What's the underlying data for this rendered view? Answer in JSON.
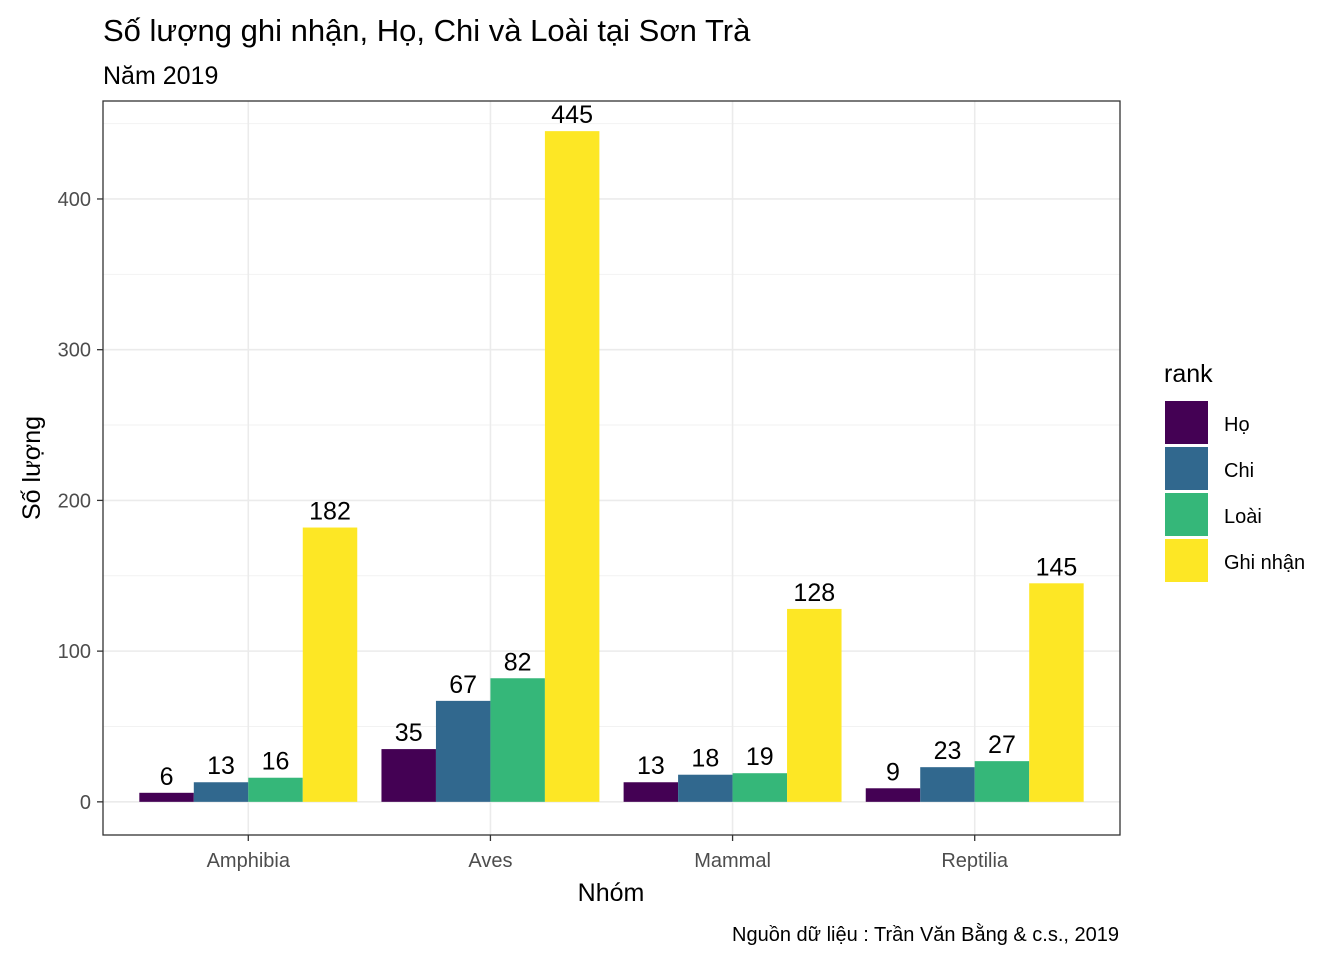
{
  "chart_data": {
    "type": "bar",
    "title": "Số lượng ghi nhận, Họ, Chi và Loài tại Sơn Trà",
    "subtitle": "Năm 2019",
    "xlabel": "Nhóm",
    "ylabel": "Số lượng",
    "caption": "Nguồn dữ liệu : Trần Văn Bằng & c.s., 2019",
    "categories": [
      "Amphibia",
      "Aves",
      "Mammal",
      "Reptilia"
    ],
    "series": [
      {
        "name": "Họ",
        "color": "#440154",
        "values": [
          6,
          35,
          13,
          9
        ]
      },
      {
        "name": "Chi",
        "color": "#31688E",
        "values": [
          13,
          67,
          18,
          23
        ]
      },
      {
        "name": "Loài",
        "color": "#35B779",
        "values": [
          16,
          82,
          19,
          27
        ]
      },
      {
        "name": "Ghi nhận",
        "color": "#FDE725",
        "values": [
          182,
          445,
          128,
          145
        ]
      }
    ],
    "ylim": [
      -22,
      465
    ],
    "yticks": [
      0,
      100,
      200,
      300,
      400
    ],
    "grid": true,
    "legend": {
      "title": "rank",
      "position": "right"
    }
  }
}
